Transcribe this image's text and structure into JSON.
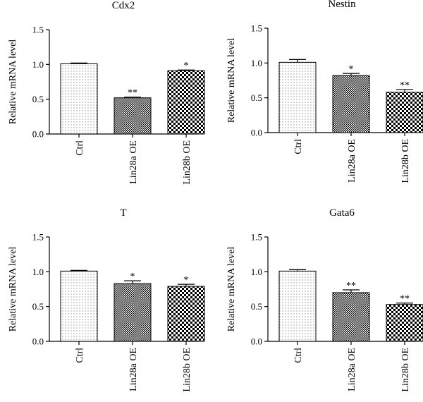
{
  "chart_data": [
    {
      "type": "bar",
      "title": "Cdx2",
      "ylabel": "Relative mRNA level",
      "categories": [
        "Ctrl",
        "Lin28a OE",
        "Lin28b OE"
      ],
      "values": [
        1.01,
        0.52,
        0.91
      ],
      "errors": [
        0.01,
        0.01,
        0.01
      ],
      "significance": [
        "",
        "**",
        "*"
      ],
      "ylim": [
        0,
        1.5
      ],
      "yticks": [
        "0.0",
        "0.5",
        "1.0",
        "1.5"
      ]
    },
    {
      "type": "bar",
      "title": "Nestin",
      "ylabel": "Relative mRNA level",
      "categories": [
        "Ctrl",
        "Lin28a OE",
        "Lin28b OE"
      ],
      "values": [
        1.01,
        0.82,
        0.58
      ],
      "errors": [
        0.04,
        0.03,
        0.04
      ],
      "significance": [
        "",
        "*",
        "**"
      ],
      "ylim": [
        0,
        1.5
      ],
      "yticks": [
        "0.0",
        "0.5",
        "1.0",
        "1.5"
      ]
    },
    {
      "type": "bar",
      "title": "T",
      "ylabel": "Relative mRNA level",
      "categories": [
        "Ctrl",
        "Lin28a OE",
        "Lin28b OE"
      ],
      "values": [
        1.01,
        0.83,
        0.79
      ],
      "errors": [
        0.01,
        0.04,
        0.03
      ],
      "significance": [
        "",
        "*",
        "*"
      ],
      "ylim": [
        0,
        1.5
      ],
      "yticks": [
        "0.0",
        "0.5",
        "1.0",
        "1.5"
      ]
    },
    {
      "type": "bar",
      "title": "Gata6",
      "ylabel": "Relative mRNA level",
      "categories": [
        "Ctrl",
        "Lin28a OE",
        "Lin28b OE"
      ],
      "values": [
        1.01,
        0.7,
        0.53
      ],
      "errors": [
        0.02,
        0.04,
        0.02
      ],
      "significance": [
        "",
        "**",
        "**"
      ],
      "ylim": [
        0,
        1.5
      ],
      "yticks": [
        "0.0",
        "0.5",
        "1.0",
        "1.5"
      ]
    }
  ]
}
